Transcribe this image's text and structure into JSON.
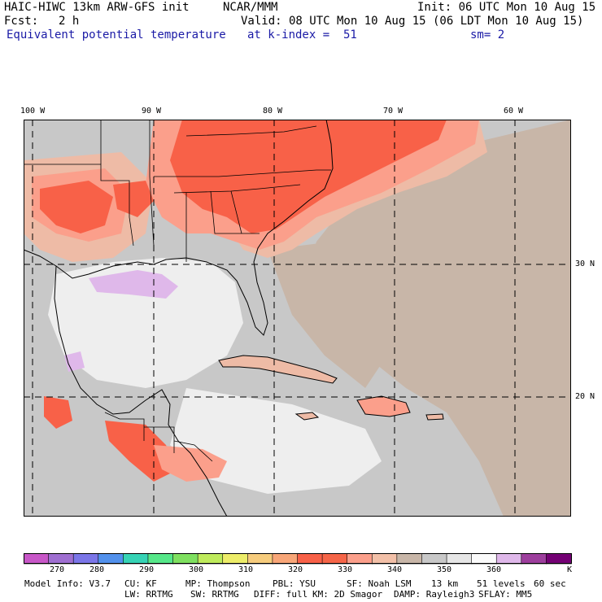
{
  "header": {
    "model_title": "HAIC-HIWC 13km ARW-GFS init",
    "org": "NCAR/MMM",
    "init": "Init: 06 UTC Mon 10 Aug 15",
    "fcst_label": "Fcst:",
    "fcst_value": "2 h",
    "valid": "Valid: 08 UTC Mon 10 Aug 15 (06 LDT Mon 10 Aug 15)",
    "field": "Equivalent potential temperature",
    "level": "at k-index =  51",
    "smoothing": "sm= 2"
  },
  "map": {
    "lon_labels": [
      "100 W",
      "90 W",
      "80 W",
      "70 W",
      "60 W"
    ],
    "lat_labels": [
      "30 N",
      "20 N"
    ],
    "colors": {
      "grey": "#c8c8c8",
      "tan": "#c8b6a8",
      "white": "#eeeeee",
      "lavender": "#dfb8ea",
      "pink": "#eebba6",
      "salmon": "#fb9f8b",
      "red": "#f86148",
      "border": "#000000",
      "grid": "#000000"
    },
    "icons": [
      "coastline-icon",
      "state-border-icon"
    ]
  },
  "colorbar": {
    "ticks": [
      "270",
      "280",
      "290",
      "300",
      "310",
      "320",
      "330",
      "340",
      "350",
      "360"
    ],
    "unit": "K",
    "colors": [
      "#c857c8",
      "#9f6fd1",
      "#7b76e8",
      "#5291ec",
      "#36d3b5",
      "#56e789",
      "#7fe060",
      "#bfeb5c",
      "#eded69",
      "#f6cc7d",
      "#f8a678",
      "#f86148",
      "#f56548",
      "#fb9f8b",
      "#f2c0a8",
      "#c8b6a8",
      "#c8c8c8",
      "#e6e6e6",
      "#fbfbfb",
      "#dfb8ea",
      "#9d3f9d",
      "#740074"
    ]
  },
  "footer": {
    "model_info": "Model Info: V3.7",
    "cu": "CU: KF",
    "mp": "MP: Thompson",
    "pbl": "PBL: YSU",
    "sf": "SF: Noah LSM",
    "res": "13 km",
    "levels": "51 levels",
    "dt": "60 sec",
    "lw": "LW: RRTMG",
    "sw": "SW: RRTMG",
    "diff": "DIFF: full",
    "km": "KM: 2D Smagor",
    "damp": "DAMP: Rayleigh3",
    "sflay": "SFLAY: MM5"
  }
}
